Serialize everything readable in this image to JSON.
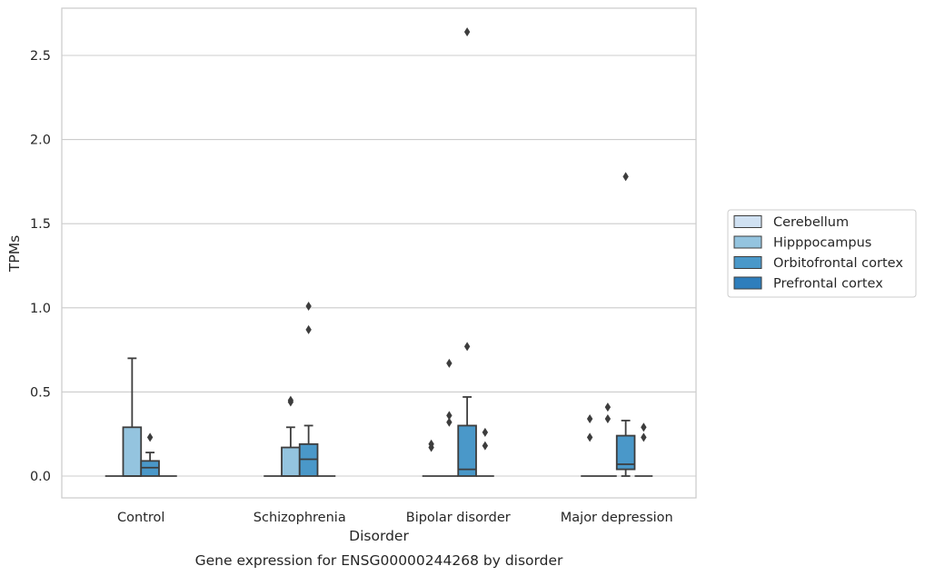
{
  "chart_data": {
    "type": "box",
    "title": "Gene expression for ENSG00000244268 by disorder",
    "xlabel": "Disorder",
    "ylabel": "TPMs",
    "ylim": [
      -0.13,
      2.78
    ],
    "yticks": [
      0.0,
      0.5,
      1.0,
      1.5,
      2.0,
      2.5
    ],
    "ytick_labels": [
      "0.0",
      "0.5",
      "1.0",
      "1.5",
      "2.0",
      "2.5"
    ],
    "grid": "horizontal",
    "legend_position": "right",
    "categories": [
      "Control",
      "Schizophrenia",
      "Bipolar disorder",
      "Major depression"
    ],
    "series": [
      {
        "name": "Cerebellum",
        "color": "#d0e1f2",
        "boxes": [
          {
            "q1": 0.0,
            "median": 0.0,
            "q3": 0.0,
            "whisker_low": 0.0,
            "whisker_high": 0.0,
            "outliers": []
          },
          {
            "q1": 0.0,
            "median": 0.0,
            "q3": 0.0,
            "whisker_low": 0.0,
            "whisker_high": 0.0,
            "outliers": []
          },
          {
            "q1": 0.0,
            "median": 0.0,
            "q3": 0.0,
            "whisker_low": 0.0,
            "whisker_high": 0.0,
            "outliers": [
              0.17,
              0.19
            ]
          },
          {
            "q1": 0.0,
            "median": 0.0,
            "q3": 0.0,
            "whisker_low": 0.0,
            "whisker_high": 0.0,
            "outliers": [
              0.23,
              0.34
            ]
          }
        ]
      },
      {
        "name": "Hipppocampus",
        "color": "#94c4df",
        "boxes": [
          {
            "q1": 0.0,
            "median": 0.0,
            "q3": 0.29,
            "whisker_low": 0.0,
            "whisker_high": 0.7,
            "outliers": []
          },
          {
            "q1": 0.0,
            "median": 0.0,
            "q3": 0.17,
            "whisker_low": 0.0,
            "whisker_high": 0.29,
            "outliers": [
              0.44,
              0.45
            ]
          },
          {
            "q1": 0.0,
            "median": 0.0,
            "q3": 0.0,
            "whisker_low": 0.0,
            "whisker_high": 0.0,
            "outliers": [
              0.32,
              0.36,
              0.67
            ]
          },
          {
            "q1": 0.0,
            "median": 0.0,
            "q3": 0.0,
            "whisker_low": 0.0,
            "whisker_high": 0.0,
            "outliers": [
              0.34,
              0.41
            ]
          }
        ]
      },
      {
        "name": "Orbitofrontal cortex",
        "color": "#4a98c9",
        "boxes": [
          {
            "q1": 0.0,
            "median": 0.05,
            "q3": 0.09,
            "whisker_low": 0.0,
            "whisker_high": 0.14,
            "outliers": [
              0.23
            ]
          },
          {
            "q1": 0.0,
            "median": 0.1,
            "q3": 0.19,
            "whisker_low": 0.0,
            "whisker_high": 0.3,
            "outliers": [
              0.87,
              1.01
            ]
          },
          {
            "q1": 0.0,
            "median": 0.04,
            "q3": 0.3,
            "whisker_low": 0.0,
            "whisker_high": 0.47,
            "outliers": [
              0.77,
              2.64
            ]
          },
          {
            "q1": 0.04,
            "median": 0.07,
            "q3": 0.24,
            "whisker_low": 0.0,
            "whisker_high": 0.33,
            "outliers": [
              1.78
            ]
          }
        ]
      },
      {
        "name": "Prefrontal cortex",
        "color": "#2e7ebc",
        "boxes": [
          {
            "q1": 0.0,
            "median": 0.0,
            "q3": 0.0,
            "whisker_low": 0.0,
            "whisker_high": 0.0,
            "outliers": []
          },
          {
            "q1": 0.0,
            "median": 0.0,
            "q3": 0.0,
            "whisker_low": 0.0,
            "whisker_high": 0.0,
            "outliers": []
          },
          {
            "q1": 0.0,
            "median": 0.0,
            "q3": 0.0,
            "whisker_low": 0.0,
            "whisker_high": 0.0,
            "outliers": [
              0.18,
              0.26
            ]
          },
          {
            "q1": 0.0,
            "median": 0.0,
            "q3": 0.0,
            "whisker_low": 0.0,
            "whisker_high": 0.0,
            "outliers": [
              0.23,
              0.29
            ]
          }
        ]
      }
    ]
  }
}
